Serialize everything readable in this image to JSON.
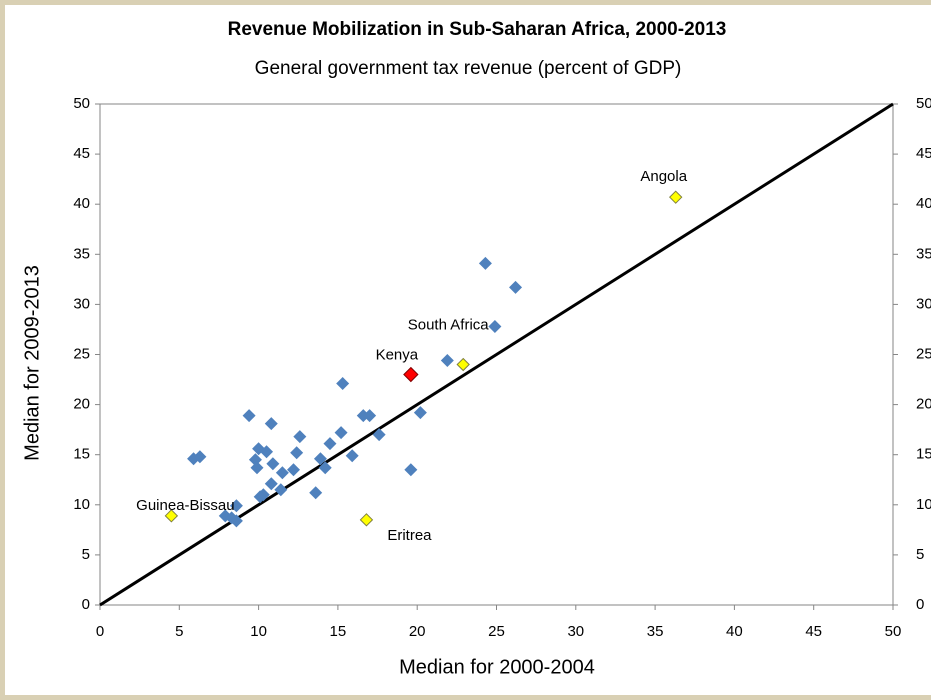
{
  "chart_data": {
    "type": "scatter",
    "title": "Revenue Mobilization in Sub-Saharan Africa, 2000-2013",
    "subtitle": "General government tax revenue  (percent of GDP)",
    "x_label": "Median for 2000-2004",
    "y_label": "Median for 2009-2013",
    "xlim": [
      0,
      50
    ],
    "xticks": [
      0,
      5,
      10,
      15,
      20,
      25,
      30,
      35,
      40,
      45,
      50
    ],
    "ylim": [
      0,
      50
    ],
    "yticks": [
      0,
      5,
      10,
      15,
      20,
      25,
      30,
      35,
      40,
      45,
      50
    ],
    "y2lim": [
      0,
      50
    ],
    "y2ticks": [
      0,
      5,
      10,
      15,
      20,
      25,
      30,
      35,
      40,
      45,
      50
    ],
    "series": [
      {
        "color": "#4f81bd",
        "x": [
          24.3,
          26.2,
          24.9,
          21.9,
          15.3,
          9.4,
          10.8,
          16.6,
          17.0,
          20.2,
          17.6,
          15.2,
          12.6,
          14.5,
          10.0,
          10.5,
          12.4,
          15.9,
          5.9,
          6.3,
          9.8,
          13.9,
          10.9,
          9.9,
          14.2,
          12.2,
          11.5,
          19.6,
          10.8,
          11.4,
          13.6,
          10.3,
          10.1,
          8.6,
          7.9,
          8.3,
          8.6
        ],
        "values": [
          34.1,
          31.7,
          27.8,
          24.4,
          22.1,
          18.9,
          18.1,
          18.9,
          18.9,
          19.2,
          17.0,
          17.2,
          16.8,
          16.1,
          15.6,
          15.3,
          15.2,
          14.9,
          14.6,
          14.8,
          14.5,
          14.6,
          14.1,
          13.7,
          13.7,
          13.5,
          13.2,
          13.5,
          12.1,
          11.5,
          11.2,
          11.0,
          10.8,
          9.9,
          8.9,
          8.7,
          8.4
        ]
      },
      {
        "color": "#ffff00",
        "x": [
          36.3,
          22.9,
          16.8,
          4.5
        ],
        "values": [
          40.7,
          24.0,
          8.5,
          8.9
        ],
        "labels": [
          "Angola",
          "South Africa",
          "Eritrea",
          "Guinea-Bissau"
        ]
      },
      {
        "color": "#ff0000",
        "x": [
          19.6
        ],
        "values": [
          23.0
        ],
        "labels": [
          "Kenya"
        ]
      }
    ]
  }
}
